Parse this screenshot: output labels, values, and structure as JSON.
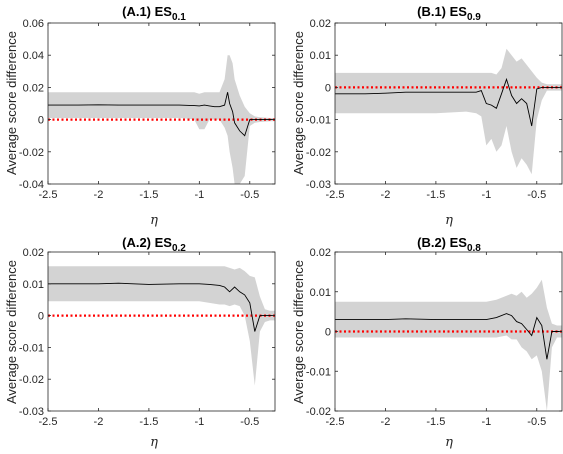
{
  "figure": {
    "colors": {
      "band": "#d3d3d3",
      "line": "#000000",
      "reference": "#ff0000",
      "axis": "#262626"
    }
  },
  "chart_data": [
    {
      "type": "area",
      "title_main": "(A.1) ES",
      "title_sub": "0.1",
      "xlabel": "η",
      "ylabel": "Average score difference",
      "xlim": [
        -2.5,
        -0.25
      ],
      "ylim": [
        -0.04,
        0.06
      ],
      "xticks": [
        -2.5,
        -2,
        -1.5,
        -1,
        -0.5
      ],
      "xtick_labels": [
        "-2.5",
        "-2",
        "-1.5",
        "-1",
        "-0.5"
      ],
      "yticks": [
        -0.04,
        -0.02,
        0,
        0.02,
        0.04,
        0.06
      ],
      "ytick_labels": [
        "-0.04",
        "-0.02",
        "0",
        "0.02",
        "0.04",
        "0.06"
      ],
      "reference_y": 0,
      "grid": false,
      "x": [
        -2.5,
        -2.2,
        -2.0,
        -1.8,
        -1.5,
        -1.2,
        -1.1,
        -1.05,
        -1.0,
        -0.95,
        -0.9,
        -0.85,
        -0.8,
        -0.75,
        -0.72,
        -0.7,
        -0.67,
        -0.65,
        -0.6,
        -0.55,
        -0.5,
        -0.45,
        -0.4,
        -0.3,
        -0.25
      ],
      "series": [
        {
          "values": [
            0.009,
            0.009,
            0.0092,
            0.009,
            0.009,
            0.009,
            0.0088,
            0.0087,
            0.0085,
            0.009,
            0.0085,
            0.008,
            0.008,
            0.009,
            0.017,
            0.01,
            0.005,
            -0.002,
            -0.007,
            -0.01,
            0.0,
            0.0,
            0.0,
            0.0,
            0.0
          ]
        }
      ],
      "band_upper": [
        0.017,
        0.017,
        0.017,
        0.017,
        0.017,
        0.017,
        0.017,
        0.017,
        0.016,
        0.017,
        0.017,
        0.017,
        0.017,
        0.025,
        0.04,
        0.04,
        0.035,
        0.025,
        0.015,
        0.008,
        0.004,
        0.002,
        0.0015,
        0.001,
        0.001
      ],
      "band_lower": [
        0.001,
        0.001,
        0.001,
        0.001,
        0.001,
        0.001,
        0.0005,
        0.0,
        -0.006,
        -0.006,
        0.0,
        0.0,
        0.0,
        -0.005,
        -0.01,
        -0.02,
        -0.03,
        -0.04,
        -0.04,
        -0.035,
        -0.004,
        -0.002,
        -0.0015,
        -0.001,
        -0.001
      ]
    },
    {
      "type": "area",
      "title_main": "(B.1) ES",
      "title_sub": "0.9",
      "xlabel": "η",
      "ylabel": "Average score difference",
      "xlim": [
        -2.5,
        -0.25
      ],
      "ylim": [
        -0.03,
        0.02
      ],
      "xticks": [
        -2.5,
        -2,
        -1.5,
        -1,
        -0.5
      ],
      "xtick_labels": [
        "-2.5",
        "-2",
        "-1.5",
        "-1",
        "-0.5"
      ],
      "yticks": [
        -0.03,
        -0.02,
        -0.01,
        0,
        0.01,
        0.02
      ],
      "ytick_labels": [
        "-0.03",
        "-0.02",
        "-0.01",
        "0",
        "0.01",
        "0.02"
      ],
      "reference_y": 0,
      "grid": false,
      "x": [
        -2.5,
        -2.2,
        -2.0,
        -1.8,
        -1.5,
        -1.2,
        -1.1,
        -1.05,
        -1.0,
        -0.95,
        -0.9,
        -0.85,
        -0.8,
        -0.75,
        -0.7,
        -0.65,
        -0.6,
        -0.55,
        -0.5,
        -0.45,
        -0.4,
        -0.3,
        -0.25
      ],
      "series": [
        {
          "values": [
            -0.002,
            -0.002,
            -0.0018,
            -0.0015,
            -0.0015,
            -0.0015,
            -0.0015,
            -0.001,
            -0.005,
            -0.0055,
            -0.0065,
            -0.002,
            0.0025,
            -0.0025,
            -0.005,
            -0.0035,
            -0.005,
            -0.012,
            -0.0005,
            0.0,
            0.0,
            0.0,
            0.0
          ]
        }
      ],
      "band_upper": [
        0.0045,
        0.0045,
        0.0045,
        0.0045,
        0.0045,
        0.0045,
        0.0045,
        0.0045,
        0.0045,
        0.0045,
        0.004,
        0.006,
        0.012,
        0.01,
        0.008,
        0.009,
        0.007,
        0.005,
        0.003,
        0.0015,
        0.001,
        0.001,
        0.001
      ],
      "band_lower": [
        -0.008,
        -0.008,
        -0.008,
        -0.008,
        -0.008,
        -0.0075,
        -0.008,
        -0.009,
        -0.018,
        -0.016,
        -0.02,
        -0.018,
        -0.012,
        -0.02,
        -0.025,
        -0.022,
        -0.024,
        -0.027,
        -0.01,
        -0.004,
        -0.001,
        -0.001,
        -0.001
      ]
    },
    {
      "type": "area",
      "title_main": "(A.2) ES",
      "title_sub": "0.2",
      "xlabel": "η",
      "ylabel": "Average score difference",
      "xlim": [
        -2.5,
        -0.25
      ],
      "ylim": [
        -0.03,
        0.02
      ],
      "xticks": [
        -2.5,
        -2,
        -1.5,
        -1,
        -0.5
      ],
      "xtick_labels": [
        "-2.5",
        "-2",
        "-1.5",
        "-1",
        "-0.5"
      ],
      "yticks": [
        -0.03,
        -0.02,
        -0.01,
        0,
        0.01,
        0.02
      ],
      "ytick_labels": [
        "-0.03",
        "-0.02",
        "-0.01",
        "0",
        "0.01",
        "0.02"
      ],
      "reference_y": 0,
      "grid": false,
      "x": [
        -2.5,
        -2.2,
        -2.0,
        -1.8,
        -1.5,
        -1.2,
        -1.0,
        -0.9,
        -0.8,
        -0.75,
        -0.7,
        -0.65,
        -0.6,
        -0.55,
        -0.5,
        -0.45,
        -0.4,
        -0.35,
        -0.3,
        -0.25
      ],
      "series": [
        {
          "values": [
            0.01,
            0.01,
            0.01,
            0.0102,
            0.0098,
            0.01,
            0.01,
            0.0098,
            0.0095,
            0.009,
            0.0075,
            0.009,
            0.0075,
            0.0065,
            0.004,
            -0.005,
            0.0,
            0.0,
            0.0,
            0.0
          ]
        }
      ],
      "band_upper": [
        0.0155,
        0.0155,
        0.0155,
        0.0155,
        0.0155,
        0.0155,
        0.0155,
        0.0155,
        0.0155,
        0.0155,
        0.015,
        0.0145,
        0.015,
        0.014,
        0.0125,
        0.012,
        0.006,
        0.002,
        0.0015,
        0.0015
      ],
      "band_lower": [
        0.0045,
        0.0045,
        0.0045,
        0.0045,
        0.0045,
        0.0045,
        0.0045,
        0.004,
        0.0035,
        0.0035,
        0.003,
        0.0035,
        0.003,
        0.0,
        -0.008,
        -0.022,
        -0.005,
        -0.002,
        -0.0015,
        -0.0015
      ]
    },
    {
      "type": "area",
      "title_main": "(B.2) ES",
      "title_sub": "0.8",
      "xlabel": "η",
      "ylabel": "Average score difference",
      "xlim": [
        -2.5,
        -0.25
      ],
      "ylim": [
        -0.02,
        0.02
      ],
      "xticks": [
        -2.5,
        -2,
        -1.5,
        -1,
        -0.5
      ],
      "xtick_labels": [
        "-2.5",
        "-2",
        "-1.5",
        "-1",
        "-0.5"
      ],
      "yticks": [
        -0.02,
        -0.01,
        0,
        0.01,
        0.02
      ],
      "ytick_labels": [
        "-0.02",
        "-0.01",
        "0",
        "0.01",
        "0.02"
      ],
      "reference_y": 0,
      "grid": false,
      "x": [
        -2.5,
        -2.2,
        -2.0,
        -1.8,
        -1.5,
        -1.2,
        -1.0,
        -0.9,
        -0.8,
        -0.75,
        -0.7,
        -0.65,
        -0.6,
        -0.55,
        -0.5,
        -0.45,
        -0.4,
        -0.35,
        -0.3,
        -0.25
      ],
      "series": [
        {
          "values": [
            0.003,
            0.003,
            0.003,
            0.0032,
            0.003,
            0.003,
            0.003,
            0.0035,
            0.0045,
            0.004,
            0.0025,
            0.002,
            0.0005,
            -0.001,
            0.0035,
            0.0015,
            -0.007,
            0.0,
            0.0,
            0.0
          ]
        }
      ],
      "band_upper": [
        0.0075,
        0.0075,
        0.0075,
        0.0075,
        0.0075,
        0.0075,
        0.0075,
        0.008,
        0.009,
        0.0095,
        0.009,
        0.01,
        0.0085,
        0.0095,
        0.011,
        0.013,
        0.006,
        0.002,
        0.0015,
        0.0015
      ],
      "band_lower": [
        -0.0015,
        -0.0015,
        -0.0015,
        -0.0015,
        -0.0015,
        -0.0015,
        -0.0015,
        -0.0015,
        -0.001,
        -0.002,
        -0.002,
        -0.004,
        -0.005,
        -0.007,
        -0.006,
        -0.01,
        -0.02,
        -0.004,
        -0.0015,
        -0.0015
      ]
    }
  ]
}
